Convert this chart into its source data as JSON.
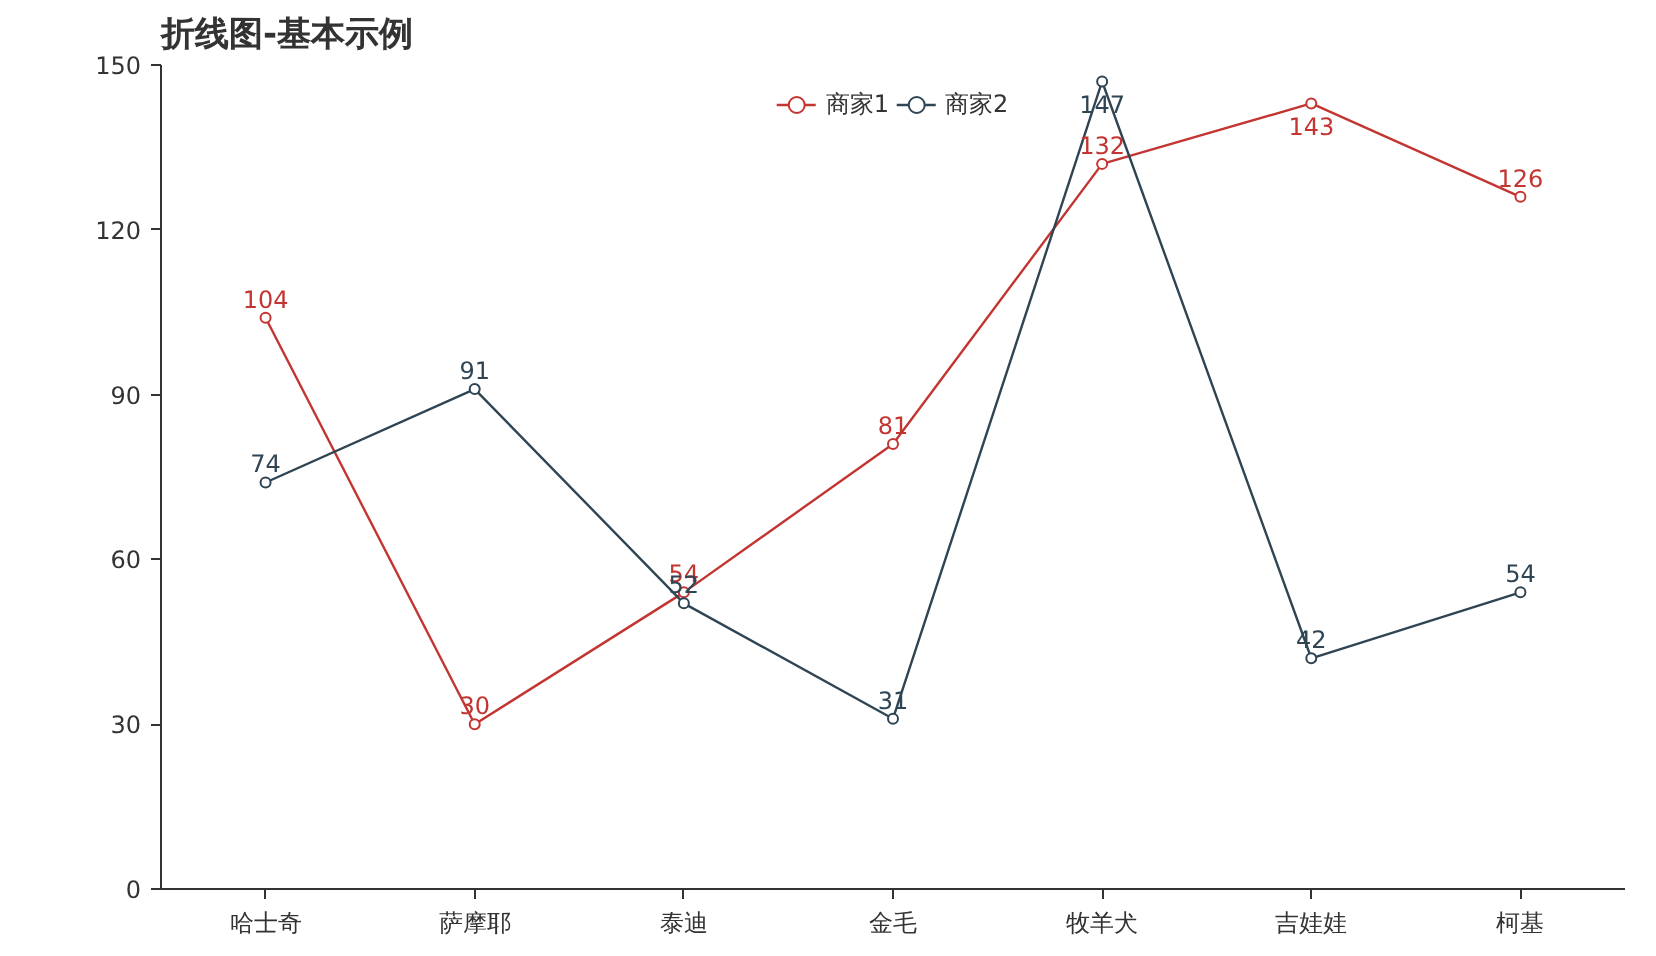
{
  "chart_data": {
    "type": "line",
    "title": "折线图-基本示例",
    "categories": [
      "哈士奇",
      "萨摩耶",
      "泰迪",
      "金毛",
      "牧羊犬",
      "吉娃娃",
      "柯基"
    ],
    "series": [
      {
        "name": "商家1",
        "color": "#c23531",
        "values": [
          104,
          30,
          54,
          81,
          132,
          143,
          126
        ]
      },
      {
        "name": "商家2",
        "color": "#2f4554",
        "values": [
          74,
          91,
          52,
          31,
          147,
          42,
          54
        ]
      }
    ],
    "ylim": [
      0,
      150
    ],
    "yticks": [
      0,
      30,
      60,
      90,
      120,
      150
    ],
    "grid": false,
    "legend": "top",
    "marker": "circle",
    "line_style": "solid",
    "data_labels": true
  }
}
